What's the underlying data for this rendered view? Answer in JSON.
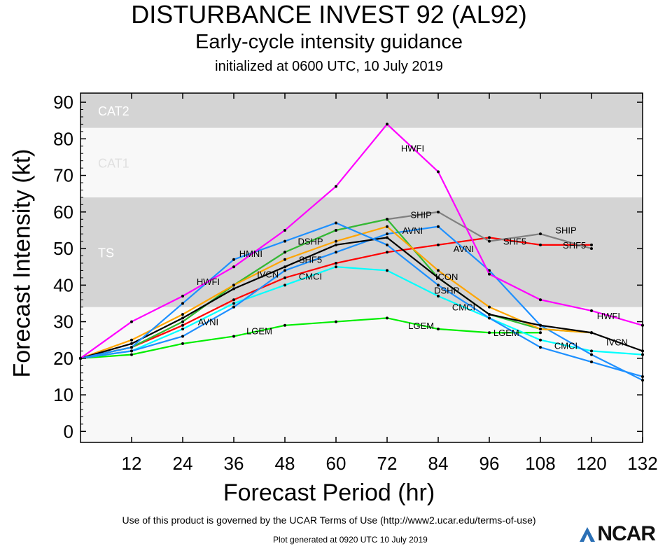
{
  "header": {
    "title": "DISTURBANCE INVEST 92 (AL92)",
    "subtitle": "Early-cycle intensity guidance",
    "initialized": "initialized at 0600 UTC, 10 July 2019"
  },
  "footer": {
    "terms": "Use of this product is governed by the UCAR Terms of Use (http://www2.ucar.edu/terms-of-use)",
    "generated": "Plot generated at 0920 UTC   10 July 2019",
    "logo": "NCAR"
  },
  "chart_data": {
    "type": "line",
    "xlabel": "Forecast Period (hr)",
    "ylabel": "Forecast Intensity (kt)",
    "xlim": [
      0,
      132
    ],
    "ylim": [
      -3,
      92.5
    ],
    "x_ticks": [
      12,
      24,
      36,
      48,
      60,
      72,
      84,
      96,
      108,
      120,
      132
    ],
    "y_ticks": [
      0,
      10,
      20,
      30,
      40,
      50,
      60,
      70,
      80,
      90
    ],
    "grid": false,
    "bands": [
      {
        "label": "TS",
        "from": 34,
        "to": 64,
        "color": "#d4d4d4"
      },
      {
        "label": "CAT1",
        "from": 64,
        "to": 83,
        "color": "#f8f8f8"
      },
      {
        "label": "CAT2",
        "from": 83,
        "to": 96,
        "color": "#d4d4d4"
      }
    ],
    "below_band_color": "#f8f8f8",
    "x": [
      0,
      12,
      24,
      36,
      48,
      60,
      72,
      84,
      96,
      108,
      120,
      132
    ],
    "series": [
      {
        "name": "LGEM",
        "color": "#00ee00",
        "values": [
          20,
          21,
          24,
          26,
          29,
          30,
          31,
          28,
          27,
          27,
          null,
          null
        ]
      },
      {
        "name": "CMCI",
        "color": "#00ffff",
        "values": [
          20,
          22,
          28,
          35,
          40,
          45,
          44,
          37,
          31,
          25,
          22,
          21
        ]
      },
      {
        "name": "SHF5",
        "color": "#ff0000",
        "values": [
          20,
          23,
          29,
          36,
          42,
          46,
          49,
          51,
          53,
          51,
          51,
          null
        ]
      },
      {
        "name": "AVNI",
        "color": "#1e90ff",
        "values": [
          20,
          22,
          26,
          34,
          44,
          49,
          54,
          56,
          44,
          29,
          21,
          14
        ]
      },
      {
        "name": "SHIP",
        "color": "#808080",
        "values": [
          20,
          23,
          30,
          40,
          49,
          55,
          58,
          60,
          52,
          54,
          50,
          null
        ]
      },
      {
        "name": "DSHP",
        "color": "#33bb33",
        "values": [
          20,
          23,
          30,
          40,
          49,
          55,
          58,
          42,
          32,
          28,
          27,
          null
        ]
      },
      {
        "name": "ICON",
        "color": "#ffa500",
        "values": [
          20,
          25,
          32,
          40,
          47,
          52,
          56,
          44,
          34,
          28,
          27,
          null
        ]
      },
      {
        "name": "IVCN",
        "color": "#000000",
        "values": [
          20,
          24,
          31,
          39,
          45,
          51,
          53,
          42,
          32,
          29,
          27,
          22
        ]
      },
      {
        "name": "HMNI",
        "color": "#1e90ff",
        "values": [
          20,
          23,
          35,
          47,
          52,
          57,
          51,
          40,
          31,
          23,
          19,
          15
        ]
      },
      {
        "name": "HWFI",
        "color": "#ff00ff",
        "values": [
          20,
          30,
          37,
          45,
          55,
          67,
          84,
          71,
          43,
          36,
          33,
          29
        ]
      }
    ]
  }
}
